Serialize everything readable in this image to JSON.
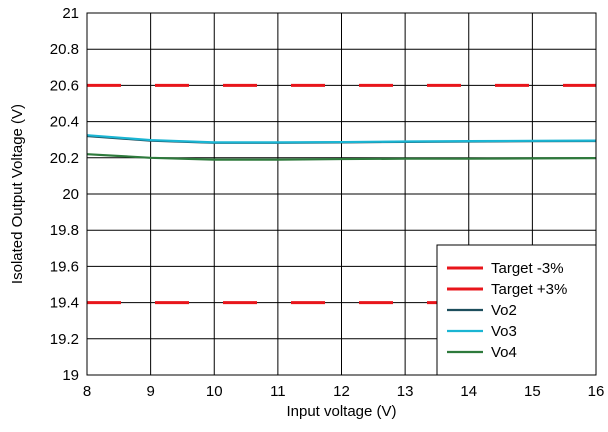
{
  "chart_data": {
    "type": "line",
    "xlabel": "Input voltage (V)",
    "ylabel": "Isolated Output Voltage (V)",
    "xlim": [
      8,
      16
    ],
    "ylim": [
      19,
      21
    ],
    "x_ticks": [
      "8",
      "9",
      "10",
      "11",
      "12",
      "13",
      "14",
      "15",
      "16"
    ],
    "y_ticks": [
      "19",
      "19.2",
      "19.4",
      "19.6",
      "19.8",
      "20",
      "20.2",
      "20.4",
      "20.6",
      "20.8",
      "21"
    ],
    "grid": true,
    "legend_position": "bottom-right",
    "series": [
      {
        "name": "Target -3%",
        "color": "#e8151b",
        "style": "dashed",
        "x": [
          8,
          16
        ],
        "y": [
          19.4,
          19.4
        ]
      },
      {
        "name": "Target +3%",
        "color": "#e8151b",
        "style": "dashed",
        "x": [
          8,
          16
        ],
        "y": [
          20.6,
          20.6
        ]
      },
      {
        "name": "Vo2",
        "color": "#1d4e5c",
        "style": "solid",
        "x": [
          8,
          9,
          10,
          11,
          12,
          13,
          14,
          15,
          16
        ],
        "y": [
          20.32,
          20.295,
          20.283,
          20.283,
          20.285,
          20.288,
          20.29,
          20.292,
          20.293
        ]
      },
      {
        "name": "Vo3",
        "color": "#1ab5d3",
        "style": "solid",
        "x": [
          8,
          9,
          10,
          11,
          12,
          13,
          14,
          15,
          16
        ],
        "y": [
          20.325,
          20.298,
          20.285,
          20.285,
          20.287,
          20.29,
          20.292,
          20.294,
          20.295
        ]
      },
      {
        "name": "Vo4",
        "color": "#2e7a3c",
        "style": "solid",
        "x": [
          8,
          9,
          10,
          11,
          12,
          13,
          14,
          15,
          16
        ],
        "y": [
          20.22,
          20.2,
          20.19,
          20.19,
          20.193,
          20.195,
          20.195,
          20.197,
          20.198
        ]
      }
    ]
  }
}
